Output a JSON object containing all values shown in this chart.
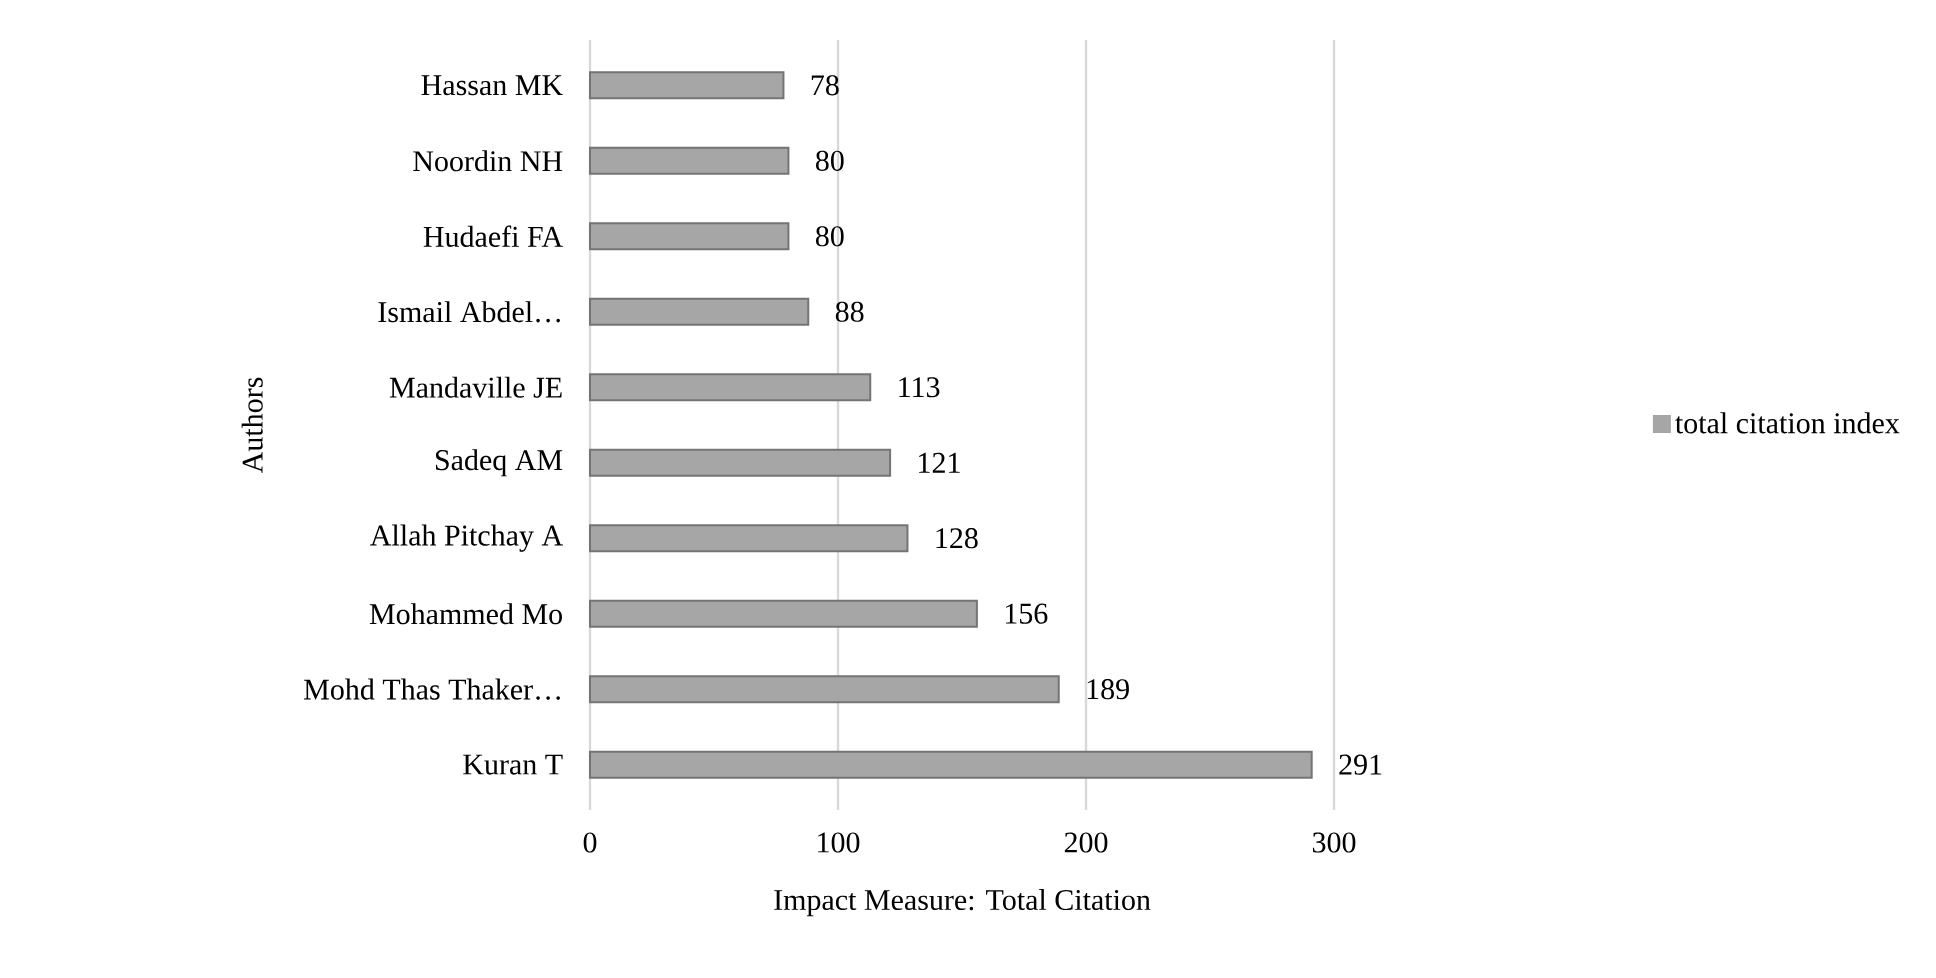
{
  "chart_data": {
    "type": "bar",
    "orientation": "horizontal",
    "xlabel": "Impact Measure: Total Citation",
    "ylabel": "Authors",
    "categories": [
      "Hassan MK",
      "Noordin NH",
      "Hudaefi FA",
      "Ismail Abdel…",
      "Mandaville JE",
      "Sadeq AM",
      "Allah Pitchay A",
      "Mohammed Mo",
      "Mohd Thas Thaker…",
      "Kuran T"
    ],
    "series": [
      {
        "name": "total citation index",
        "color": "#a6a6a6",
        "values": [
          78,
          80,
          80,
          88,
          113,
          121,
          128,
          156,
          189,
          291
        ]
      }
    ],
    "xlim": [
      0,
      300
    ],
    "xticks": [
      0,
      100,
      200,
      300
    ],
    "grid": "x",
    "legend": "right",
    "data_labels": true
  }
}
